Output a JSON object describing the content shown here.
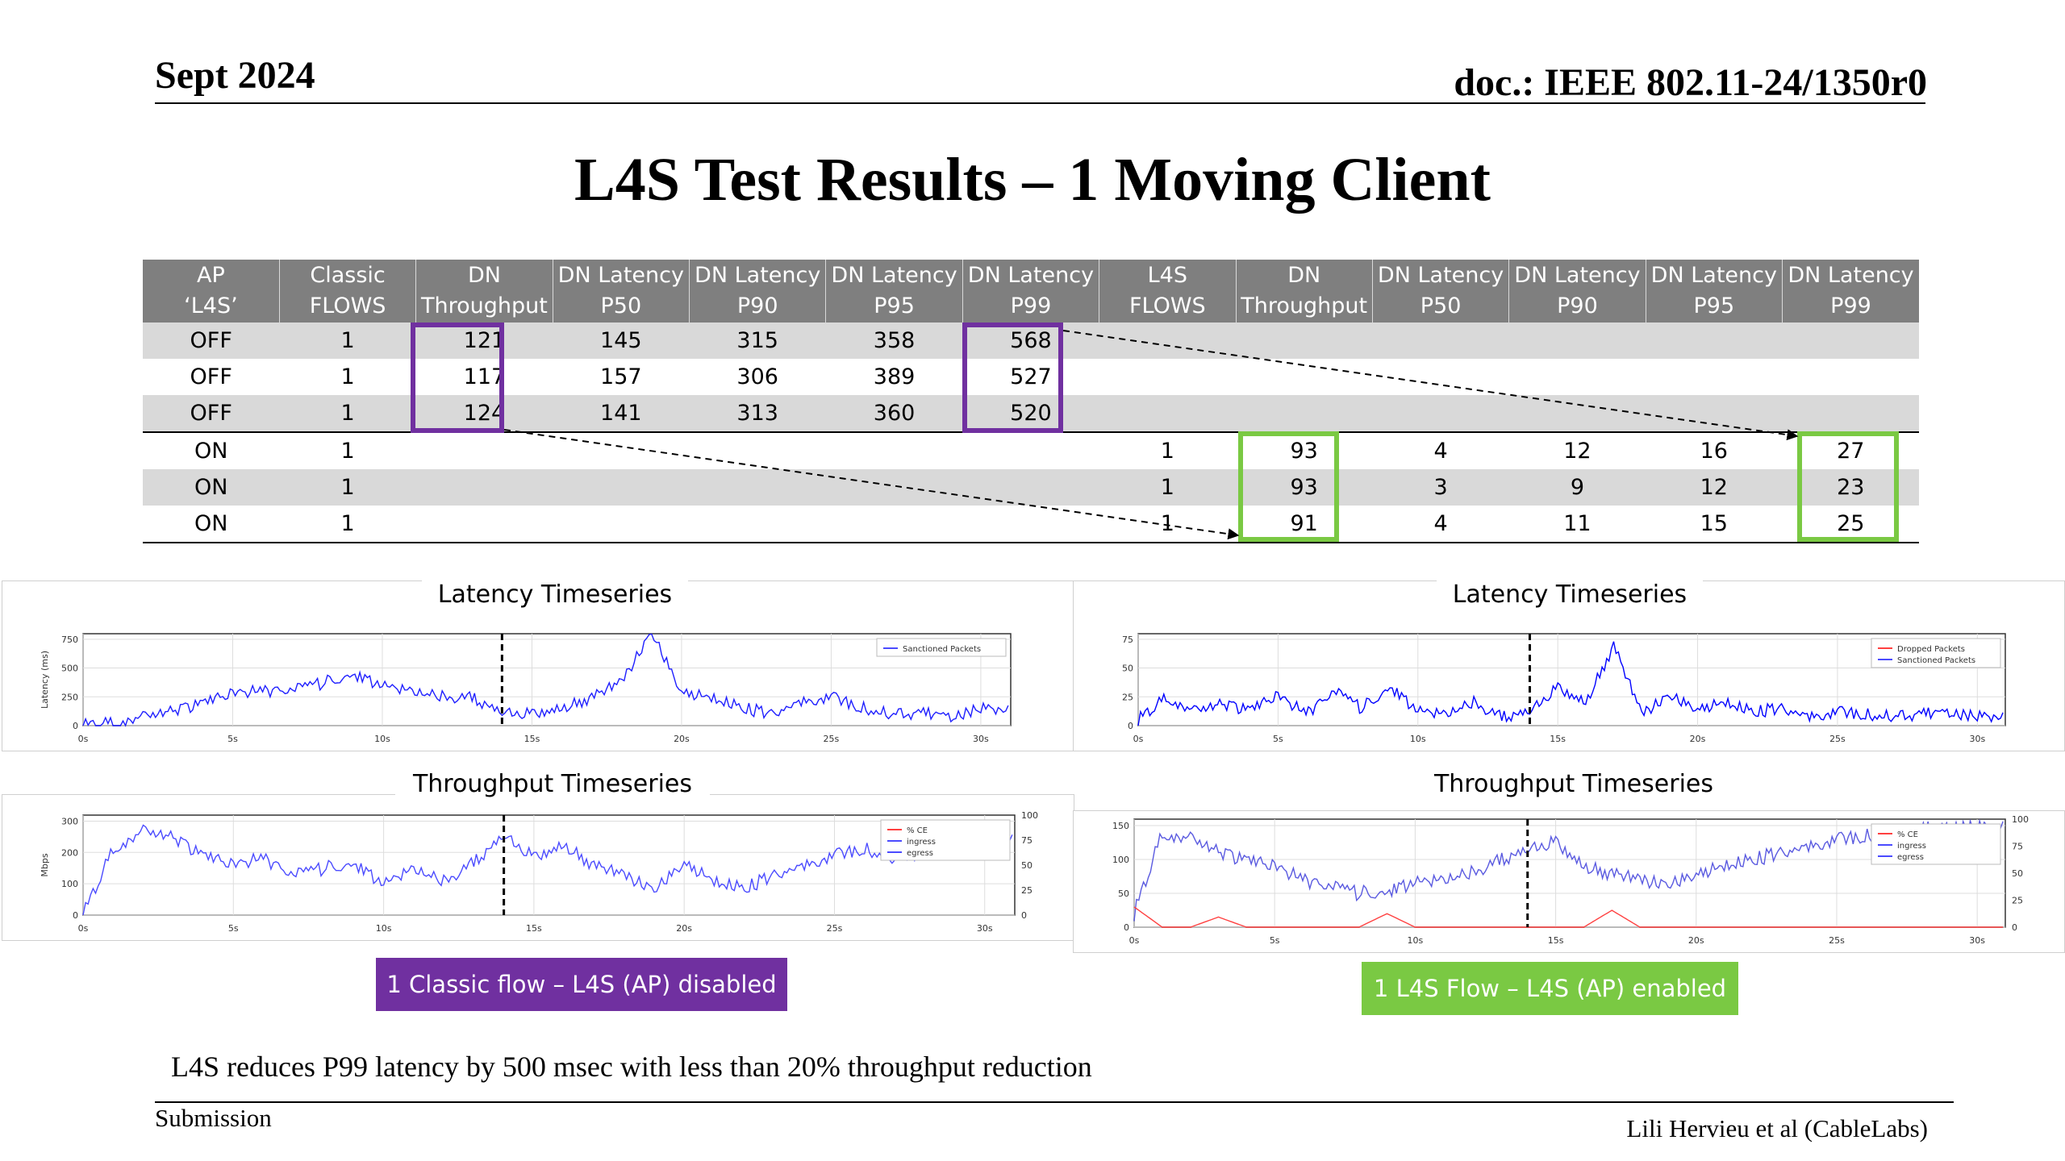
{
  "header": {
    "date": "Sept 2024",
    "doc": "doc.: IEEE 802.11-24/1350r0"
  },
  "title": "L4S Test Results – 1 Moving Client",
  "table": {
    "headers": [
      [
        "AP",
        "‘L4S’"
      ],
      [
        "Classic",
        "FLOWS"
      ],
      [
        "DN",
        "Throughput"
      ],
      [
        "DN Latency",
        "P50"
      ],
      [
        "DN Latency",
        "P90"
      ],
      [
        "DN Latency",
        "P95"
      ],
      [
        "DN Latency",
        "P99"
      ],
      [
        "L4S",
        "FLOWS"
      ],
      [
        "DN",
        "Throughput"
      ],
      [
        "DN Latency",
        "P50"
      ],
      [
        "DN Latency",
        "P90"
      ],
      [
        "DN Latency",
        "P95"
      ],
      [
        "DN Latency",
        "P99"
      ]
    ],
    "rows": [
      [
        "OFF",
        "1",
        "121",
        "145",
        "315",
        "358",
        "568",
        "",
        "",
        "",
        "",
        "",
        ""
      ],
      [
        "OFF",
        "1",
        "117",
        "157",
        "306",
        "389",
        "527",
        "",
        "",
        "",
        "",
        "",
        ""
      ],
      [
        "OFF",
        "1",
        "124",
        "141",
        "313",
        "360",
        "520",
        "",
        "",
        "",
        "",
        "",
        ""
      ],
      [
        "ON",
        "1",
        "",
        "",
        "",
        "",
        "",
        "1",
        "93",
        "4",
        "12",
        "16",
        "27"
      ],
      [
        "ON",
        "1",
        "",
        "",
        "",
        "",
        "",
        "1",
        "93",
        "3",
        "9",
        "12",
        "23"
      ],
      [
        "ON",
        "1",
        "",
        "",
        "",
        "",
        "",
        "1",
        "91",
        "4",
        "11",
        "15",
        "25"
      ]
    ]
  },
  "left_panel": {
    "latency_title": "Latency Timeseries",
    "throughput_title": "Throughput Timeseries",
    "latency_ylabel": "Latency (ms)",
    "latency_legend": "Sanctioned Packets",
    "throughput_ylabel": "Mbps",
    "throughput_legend": [
      "% CE",
      "ingress",
      "egress"
    ],
    "caption": "1 Classic flow – L4S (AP) disabled",
    "caption_color": "#7030a0"
  },
  "right_panel": {
    "latency_title": "Latency Timeseries",
    "throughput_title": "Throughput Timeseries",
    "latency_legend": [
      "Dropped Packets",
      "Sanctioned Packets"
    ],
    "throughput_legend": [
      "% CE",
      "ingress",
      "egress"
    ],
    "caption": "1 L4S Flow – L4S (AP) enabled",
    "caption_color": "#7ac943"
  },
  "chart_data": [
    {
      "id": "left-latency",
      "type": "line",
      "x_ticks": [
        "0s",
        "5s",
        "10s",
        "15s",
        "20s",
        "25s",
        "30s"
      ],
      "y_ticks": [
        "0",
        "250",
        "500",
        "750"
      ],
      "ylim": [
        0,
        800
      ],
      "ylabel": "Latency (ms)",
      "legend": [
        "Sanctioned Packets"
      ],
      "series": [
        {
          "name": "Sanctioned Packets",
          "color": "#1f1fff",
          "x": [
            0,
            1,
            2,
            3,
            4,
            5,
            6,
            7,
            8,
            9,
            10,
            11,
            12,
            13,
            14,
            15,
            16,
            17,
            18,
            19,
            20,
            21,
            22,
            23,
            24,
            25,
            26,
            27,
            28,
            29,
            30,
            31
          ],
          "values": [
            0,
            30,
            70,
            120,
            200,
            280,
            300,
            310,
            370,
            460,
            340,
            300,
            250,
            250,
            90,
            120,
            150,
            250,
            380,
            800,
            300,
            240,
            160,
            100,
            210,
            250,
            160,
            100,
            110,
            80,
            150,
            120
          ]
        }
      ]
    },
    {
      "id": "right-latency",
      "type": "line",
      "x_ticks": [
        "0s",
        "5s",
        "10s",
        "15s",
        "20s",
        "25s",
        "30s"
      ],
      "y_ticks": [
        "0",
        "25",
        "50",
        "75"
      ],
      "ylim": [
        0,
        80
      ],
      "legend": [
        "Dropped Packets",
        "Sanctioned Packets"
      ],
      "series": [
        {
          "name": "latency",
          "color": "#0000ff",
          "x": [
            0,
            1,
            2,
            3,
            4,
            5,
            6,
            7,
            8,
            9,
            10,
            11,
            12,
            13,
            14,
            15,
            16,
            17,
            18,
            19,
            20,
            21,
            22,
            23,
            24,
            25,
            26,
            27,
            28,
            29,
            30,
            31
          ],
          "values": [
            5,
            25,
            12,
            18,
            14,
            26,
            10,
            30,
            15,
            35,
            12,
            10,
            20,
            8,
            10,
            35,
            20,
            70,
            10,
            25,
            15,
            20,
            12,
            15,
            8,
            12,
            10,
            8,
            10,
            12,
            8,
            6
          ]
        }
      ]
    },
    {
      "id": "left-throughput",
      "type": "line",
      "x_ticks": [
        "0s",
        "5s",
        "10s",
        "15s",
        "20s",
        "25s",
        "30s"
      ],
      "y_ticks": [
        "0",
        "100",
        "200",
        "300"
      ],
      "y2_ticks": [
        "0",
        "25",
        "50",
        "75",
        "100"
      ],
      "ylim": [
        0,
        300
      ],
      "ylabel": "Mbps",
      "legend": [
        "% CE",
        "ingress",
        "egress"
      ],
      "series": [
        {
          "name": "ingress",
          "color": "#4b4bff",
          "x": [
            0,
            1,
            2,
            3,
            4,
            5,
            6,
            7,
            8,
            9,
            10,
            11,
            12,
            13,
            14,
            15,
            16,
            17,
            18,
            19,
            20,
            21,
            22,
            23,
            24,
            25,
            26,
            27,
            28,
            29,
            30,
            31
          ],
          "values": [
            0,
            200,
            250,
            230,
            180,
            150,
            170,
            120,
            140,
            160,
            90,
            140,
            100,
            160,
            230,
            180,
            210,
            150,
            120,
            70,
            160,
            100,
            80,
            120,
            150,
            180,
            200,
            170,
            190,
            230,
            240,
            220
          ]
        }
      ]
    },
    {
      "id": "right-throughput",
      "type": "line",
      "x_ticks": [
        "0s",
        "5s",
        "10s",
        "15s",
        "20s",
        "25s",
        "30s"
      ],
      "y_ticks": [
        "0",
        "50",
        "100",
        "150"
      ],
      "y2_ticks": [
        "0",
        "25",
        "50",
        "75",
        "100"
      ],
      "ylim": [
        0,
        160
      ],
      "legend": [
        "% CE",
        "ingress",
        "egress"
      ],
      "series": [
        {
          "name": "ingress",
          "color": "#5a5ae0",
          "x": [
            0,
            1,
            2,
            3,
            4,
            5,
            6,
            7,
            8,
            9,
            10,
            11,
            12,
            13,
            14,
            15,
            16,
            17,
            18,
            19,
            20,
            21,
            22,
            23,
            24,
            25,
            26,
            27,
            28,
            29,
            30,
            31
          ],
          "values": [
            20,
            140,
            130,
            110,
            100,
            90,
            70,
            60,
            50,
            55,
            65,
            70,
            80,
            100,
            110,
            130,
            90,
            80,
            70,
            60,
            80,
            90,
            100,
            110,
            120,
            130,
            135,
            140,
            145,
            150,
            148,
            146
          ]
        },
        {
          "name": "% CE",
          "color": "#ff4040",
          "x": [
            0,
            1,
            2,
            3,
            4,
            5,
            6,
            7,
            8,
            9,
            10,
            11,
            12,
            13,
            14,
            15,
            16,
            17,
            18,
            19,
            20,
            21,
            22,
            23,
            24,
            25,
            26,
            27,
            28,
            29,
            30,
            31
          ],
          "values": [
            30,
            0,
            0,
            15,
            0,
            0,
            0,
            0,
            0,
            20,
            0,
            0,
            0,
            0,
            0,
            0,
            0,
            25,
            0,
            0,
            0,
            0,
            0,
            0,
            0,
            0,
            0,
            0,
            0,
            0,
            0,
            0
          ]
        }
      ]
    }
  ],
  "summary": "L4S reduces P99 latency by 500 msec with less than  20% throughput reduction",
  "footer": {
    "left": "Submission",
    "right": "Lili Hervieu et al (CableLabs)"
  }
}
